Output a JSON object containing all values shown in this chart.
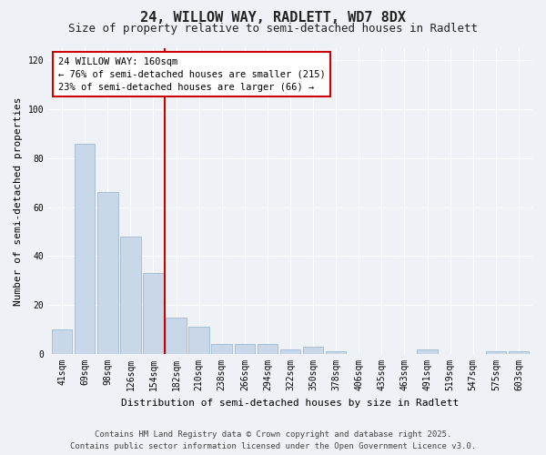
{
  "title": "24, WILLOW WAY, RADLETT, WD7 8DX",
  "subtitle": "Size of property relative to semi-detached houses in Radlett",
  "xlabel": "Distribution of semi-detached houses by size in Radlett",
  "ylabel": "Number of semi-detached properties",
  "categories": [
    "41sqm",
    "69sqm",
    "98sqm",
    "126sqm",
    "154sqm",
    "182sqm",
    "210sqm",
    "238sqm",
    "266sqm",
    "294sqm",
    "322sqm",
    "350sqm",
    "378sqm",
    "406sqm",
    "435sqm",
    "463sqm",
    "491sqm",
    "519sqm",
    "547sqm",
    "575sqm",
    "603sqm"
  ],
  "values": [
    10,
    86,
    66,
    48,
    33,
    15,
    11,
    4,
    4,
    4,
    2,
    3,
    1,
    0,
    0,
    0,
    2,
    0,
    0,
    1,
    1
  ],
  "bar_color": "#c8d8e8",
  "bar_edge_color": "#a0b8d0",
  "red_line_x": 4.5,
  "annotation_line1": "24 WILLOW WAY: 160sqm",
  "annotation_line2": "← 76% of semi-detached houses are smaller (215)",
  "annotation_line3": "23% of semi-detached houses are larger (66) →",
  "ylim": [
    0,
    125
  ],
  "yticks": [
    0,
    20,
    40,
    60,
    80,
    100,
    120
  ],
  "background_color": "#eef2f6",
  "plot_bg_color": "#eef2f6",
  "footer_line1": "Contains HM Land Registry data © Crown copyright and database right 2025.",
  "footer_line2": "Contains public sector information licensed under the Open Government Licence v3.0.",
  "title_fontsize": 11,
  "subtitle_fontsize": 9,
  "xlabel_fontsize": 8,
  "ylabel_fontsize": 8,
  "tick_fontsize": 7,
  "annotation_fontsize": 7.5,
  "footer_fontsize": 6.5
}
